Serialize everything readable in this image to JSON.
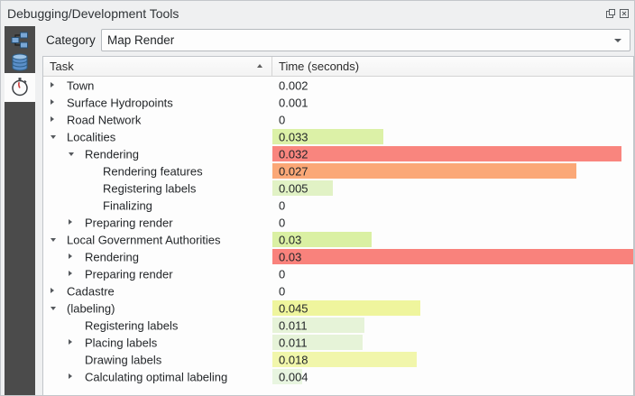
{
  "window": {
    "title": "Debugging/Development Tools"
  },
  "titlebar": {
    "float_button": "float-panel",
    "close_button": "close-panel"
  },
  "toolbar": {
    "category_label": "Category",
    "category_value": "Map Render"
  },
  "sidebar": {
    "background": "#4b4b4b",
    "active_background": "#fcfcfc",
    "items": [
      {
        "id": "query-logger",
        "icon": "network-computers-icon",
        "active": false
      },
      {
        "id": "database",
        "icon": "database-icon",
        "active": false
      },
      {
        "id": "profiler",
        "icon": "stopwatch-icon",
        "active": true
      }
    ]
  },
  "tree": {
    "columns": [
      {
        "label": "Task",
        "sort": "ascending"
      },
      {
        "label": "Time (seconds)",
        "sort": null
      }
    ],
    "rows": [
      {
        "label": "Town",
        "value": "0.002",
        "level": 0,
        "expander": "collapsed",
        "bar": null
      },
      {
        "label": "Surface Hydropoints",
        "value": "0.001",
        "level": 0,
        "expander": "collapsed",
        "bar": null
      },
      {
        "label": "Road Network",
        "value": "0",
        "level": 0,
        "expander": "collapsed",
        "bar": null
      },
      {
        "label": "Localities",
        "value": "0.033",
        "level": 0,
        "expander": "expanded",
        "bar": {
          "pct": 30.7,
          "color": "#dcf1a7"
        }
      },
      {
        "label": "Rendering",
        "value": "0.032",
        "level": 1,
        "expander": "expanded",
        "bar": {
          "pct": 96.8,
          "color": "#f9857e"
        }
      },
      {
        "label": "Rendering features",
        "value": "0.027",
        "level": 2,
        "expander": "none",
        "bar": {
          "pct": 84.3,
          "color": "#fba877"
        }
      },
      {
        "label": "Registering labels",
        "value": "0.005",
        "level": 2,
        "expander": "none",
        "bar": {
          "pct": 16.7,
          "color": "#e1f2c5"
        }
      },
      {
        "label": "Finalizing",
        "value": "0",
        "level": 2,
        "expander": "none",
        "bar": null
      },
      {
        "label": "Preparing render",
        "value": "0",
        "level": 1,
        "expander": "collapsed",
        "bar": null
      },
      {
        "label": "Local Government Authorities",
        "value": "0.03",
        "level": 0,
        "expander": "expanded",
        "bar": {
          "pct": 27.4,
          "color": "#daf0a3"
        }
      },
      {
        "label": "Rendering",
        "value": "0.03",
        "level": 1,
        "expander": "collapsed",
        "bar": {
          "pct": 100,
          "color": "#f9827c"
        }
      },
      {
        "label": "Preparing render",
        "value": "0",
        "level": 1,
        "expander": "collapsed",
        "bar": null
      },
      {
        "label": "Cadastre",
        "value": "0",
        "level": 0,
        "expander": "collapsed",
        "bar": null
      },
      {
        "label": "(labeling)",
        "value": "0.045",
        "level": 0,
        "expander": "expanded",
        "bar": {
          "pct": 40.9,
          "color": "#eff59d"
        }
      },
      {
        "label": "Registering labels",
        "value": "0.011",
        "level": 1,
        "expander": "none",
        "bar": {
          "pct": 25.4,
          "color": "#e6f3d8"
        }
      },
      {
        "label": "Placing labels",
        "value": "0.011",
        "level": 1,
        "expander": "collapsed",
        "bar": {
          "pct": 25.0,
          "color": "#e6f3d8"
        }
      },
      {
        "label": "Drawing labels",
        "value": "0.018",
        "level": 1,
        "expander": "none",
        "bar": {
          "pct": 39.9,
          "color": "#f1f6ab"
        }
      },
      {
        "label": "Calculating optimal labeling",
        "value": "0.004",
        "level": 1,
        "expander": "collapsed",
        "bar": {
          "pct": 8.2,
          "color": "#e8f5e0"
        }
      }
    ]
  }
}
